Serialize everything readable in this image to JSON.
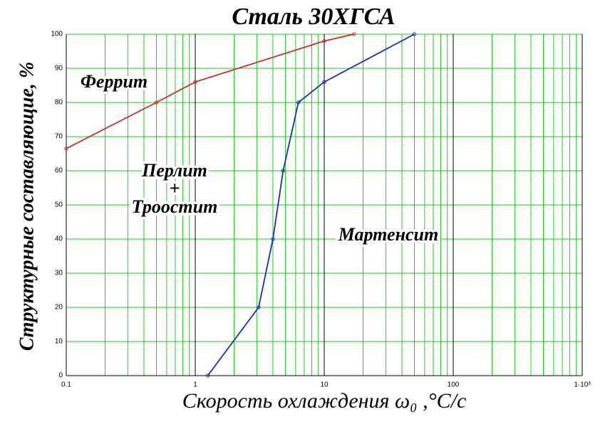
{
  "chart_data": {
    "type": "line",
    "title": "Сталь 30ХГСА",
    "x_label": "Скорость охлаждения ω₀ ,°C/c",
    "y_label": "Структурные составляющие, %",
    "annotations": [
      "Феррит",
      "Перлит",
      "+",
      "Троостит",
      "Мартенсит"
    ],
    "xscale": "log",
    "xlim": [
      0.1,
      1000
    ],
    "xticks": [
      0.1,
      1,
      10,
      100,
      {
        "value": 1000,
        "label": "1·10³"
      }
    ],
    "ylim": [
      0,
      100
    ],
    "yticks": [
      0,
      10,
      20,
      30,
      40,
      50,
      60,
      70,
      80,
      90,
      100
    ],
    "grid": true,
    "grid_color": "#22cc22",
    "series": [
      {
        "color": "#c0302a",
        "x": [
          0.1,
          0.5,
          1,
          10,
          17
        ],
        "values": [
          66.5,
          80,
          86,
          98,
          100
        ]
      },
      {
        "color": "#1a2fb0",
        "x": [
          1.25,
          3.1,
          4,
          4.8,
          6.3,
          10,
          50
        ],
        "values": [
          0,
          20,
          40,
          60,
          80,
          86,
          100
        ]
      }
    ]
  }
}
